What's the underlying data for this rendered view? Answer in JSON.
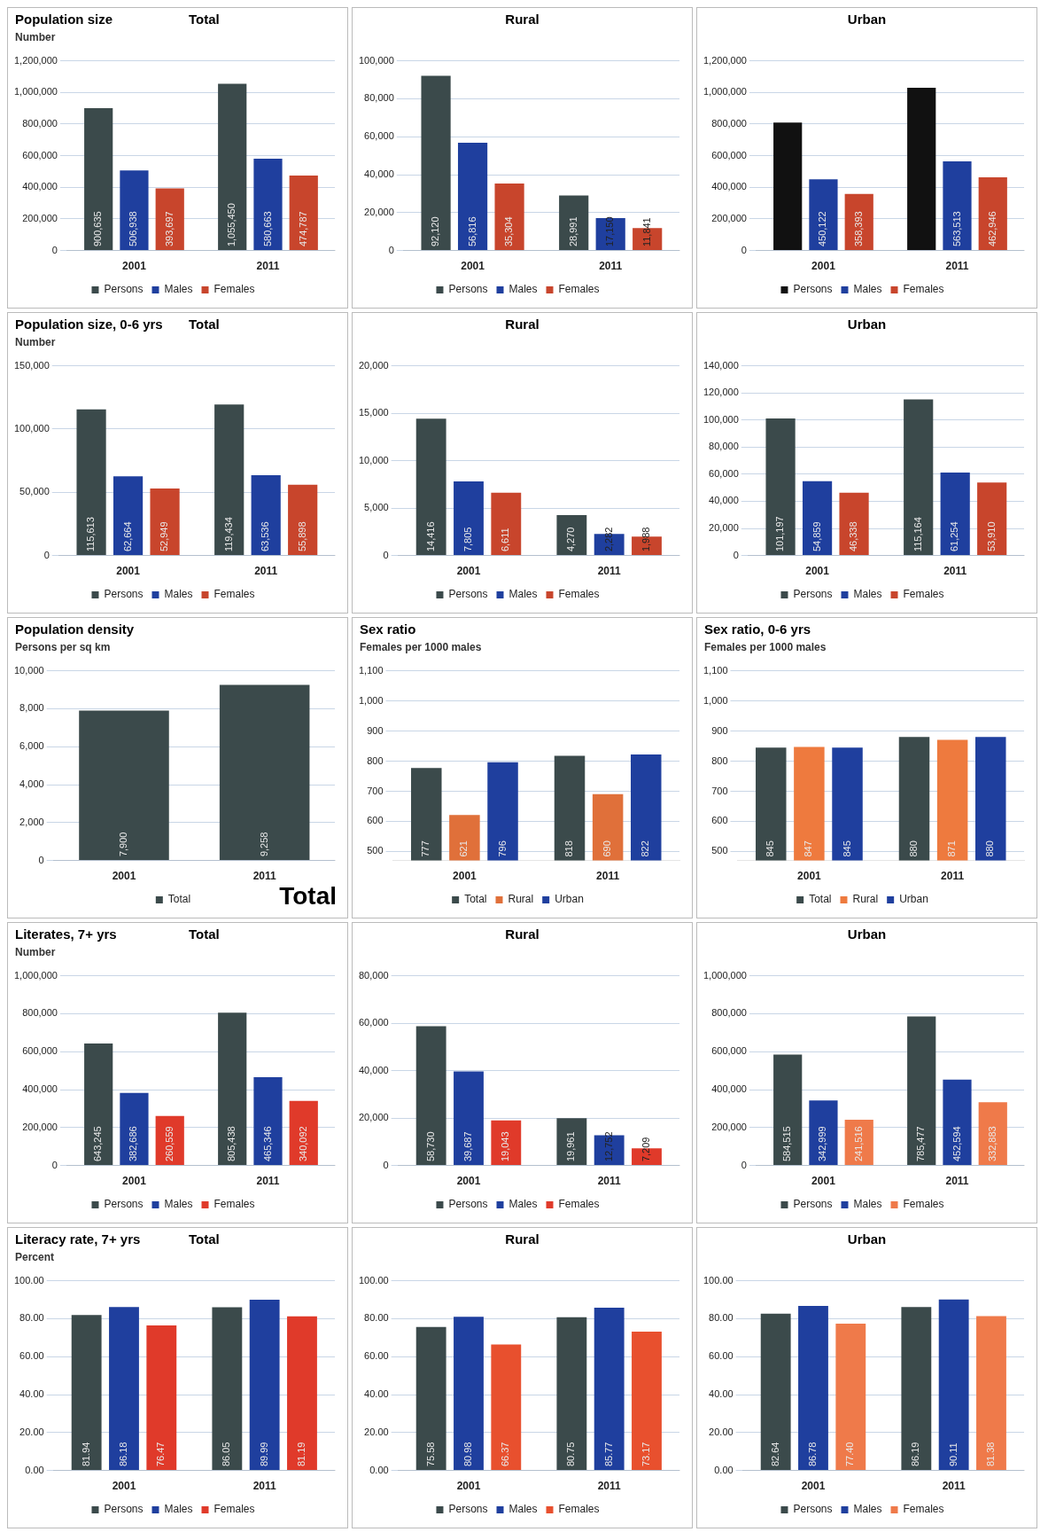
{
  "chart_data": [
    {
      "type": "bar",
      "title": "Population size",
      "subtitle": "Total",
      "ylabel": "Number",
      "categories": [
        "2001",
        "2011"
      ],
      "ylim": [
        0,
        1200000
      ],
      "yticks": [
        0,
        {
          "value": 200000,
          "label": "200,000"
        },
        {
          "value": 400000,
          "label": "400,000"
        },
        {
          "value": 600000,
          "label": "600,000"
        },
        {
          "value": 800000,
          "label": "800,000"
        },
        {
          "value": 1000000,
          "label": "1,000,000"
        },
        {
          "value": 1200000,
          "label": "1,200,000"
        }
      ],
      "grid": "y",
      "legend": "bottom",
      "series": [
        {
          "name": "Persons",
          "color": "#3b4a4b",
          "values": [
            900635,
            1055450
          ],
          "value_labels": [
            "900,635",
            "1,055,450"
          ]
        },
        {
          "name": "Males",
          "color": "#1f3f9e",
          "values": [
            506938,
            580663
          ],
          "value_labels": [
            "506,938",
            "580,663"
          ]
        },
        {
          "name": "Females",
          "color": "#c8452c",
          "values": [
            393697,
            474787
          ],
          "value_labels": [
            "393,697",
            "474,787"
          ]
        }
      ]
    },
    {
      "type": "bar",
      "subtitle": "Rural",
      "categories": [
        "2001",
        "2011"
      ],
      "ylim": [
        0,
        100000
      ],
      "yticks": [
        0,
        {
          "value": 20000,
          "label": "20,000"
        },
        {
          "value": 40000,
          "label": "40,000"
        },
        {
          "value": 60000,
          "label": "60,000"
        },
        {
          "value": 80000,
          "label": "80,000"
        },
        {
          "value": 100000,
          "label": "100,000"
        }
      ],
      "grid": "y",
      "legend": "bottom",
      "series": [
        {
          "name": "Persons",
          "color": "#3b4a4b",
          "values": [
            92120,
            28991
          ],
          "value_labels": [
            "92,120",
            "28,991"
          ]
        },
        {
          "name": "Males",
          "color": "#1f3f9e",
          "values": [
            56816,
            17150
          ],
          "value_labels": [
            "56,816",
            "17,150"
          ]
        },
        {
          "name": "Females",
          "color": "#c8452c",
          "values": [
            35304,
            11841
          ],
          "value_labels": [
            "35,304",
            "11,841"
          ]
        }
      ]
    },
    {
      "type": "bar",
      "subtitle": "Urban",
      "categories": [
        "2001",
        "2011"
      ],
      "ylim": [
        0,
        1200000
      ],
      "yticks": [
        0,
        {
          "value": 200000,
          "label": "200,000"
        },
        {
          "value": 400000,
          "label": "400,000"
        },
        {
          "value": 600000,
          "label": "600,000"
        },
        {
          "value": 800000,
          "label": "800,000"
        },
        {
          "value": 1000000,
          "label": "1,000,000"
        },
        {
          "value": 1200000,
          "label": "1,200,000"
        }
      ],
      "grid": "y",
      "legend": "bottom",
      "series": [
        {
          "name": "Persons",
          "color": "#111111",
          "values": [
            810000,
            1030000
          ],
          "value_labels": [
            null,
            null
          ]
        },
        {
          "name": "Males",
          "color": "#1f3f9e",
          "values": [
            450122,
            563513
          ],
          "value_labels": [
            "450,122",
            "563,513"
          ]
        },
        {
          "name": "Females",
          "color": "#c8452c",
          "values": [
            358393,
            462946
          ],
          "value_labels": [
            "358,393",
            "462,946"
          ]
        }
      ]
    },
    {
      "type": "bar",
      "title": "Population size, 0-6 yrs",
      "subtitle": "Total",
      "ylabel": "Number",
      "categories": [
        "2001",
        "2011"
      ],
      "ylim": [
        0,
        150000
      ],
      "yticks": [
        0,
        {
          "value": 50000,
          "label": "50,000"
        },
        {
          "value": 100000,
          "label": "100,000"
        },
        {
          "value": 150000,
          "label": "150,000"
        }
      ],
      "grid": "y",
      "legend": "bottom",
      "series": [
        {
          "name": "Persons",
          "color": "#3b4a4b",
          "values": [
            115613,
            119434
          ],
          "value_labels": [
            "115,613",
            "119,434"
          ]
        },
        {
          "name": "Males",
          "color": "#1f3f9e",
          "values": [
            62664,
            63536
          ],
          "value_labels": [
            "62,664",
            "63,536"
          ]
        },
        {
          "name": "Females",
          "color": "#c8452c",
          "values": [
            52949,
            55898
          ],
          "value_labels": [
            "52,949",
            "55,898"
          ]
        }
      ]
    },
    {
      "type": "bar",
      "subtitle": "Rural",
      "categories": [
        "2001",
        "2011"
      ],
      "ylim": [
        0,
        20000
      ],
      "yticks": [
        0,
        {
          "value": 5000,
          "label": "5,000"
        },
        {
          "value": 10000,
          "label": "10,000"
        },
        {
          "value": 15000,
          "label": "15,000"
        },
        {
          "value": 20000,
          "label": "20,000"
        }
      ],
      "grid": "y",
      "legend": "bottom",
      "series": [
        {
          "name": "Persons",
          "color": "#3b4a4b",
          "values": [
            14416,
            4270
          ],
          "value_labels": [
            "14,416",
            "4,270"
          ]
        },
        {
          "name": "Males",
          "color": "#1f3f9e",
          "values": [
            7805,
            2282
          ],
          "value_labels": [
            "7,805",
            "2,282"
          ]
        },
        {
          "name": "Females",
          "color": "#c8452c",
          "values": [
            6611,
            1988
          ],
          "value_labels": [
            "6,611",
            "1,988"
          ]
        }
      ]
    },
    {
      "type": "bar",
      "subtitle": "Urban",
      "categories": [
        "2001",
        "2011"
      ],
      "ylim": [
        0,
        140000
      ],
      "yticks": [
        0,
        {
          "value": 20000,
          "label": "20,000"
        },
        {
          "value": 40000,
          "label": "40,000"
        },
        {
          "value": 60000,
          "label": "60,000"
        },
        {
          "value": 80000,
          "label": "80,000"
        },
        {
          "value": 100000,
          "label": "100,000"
        },
        {
          "value": 120000,
          "label": "120,000"
        },
        {
          "value": 140000,
          "label": "140,000"
        }
      ],
      "grid": "y",
      "legend": "bottom",
      "series": [
        {
          "name": "Persons",
          "color": "#3b4a4b",
          "values": [
            101197,
            115164
          ],
          "value_labels": [
            "101,197",
            "115,164"
          ]
        },
        {
          "name": "Males",
          "color": "#1f3f9e",
          "values": [
            54859,
            61254
          ],
          "value_labels": [
            "54,859",
            "61,254"
          ]
        },
        {
          "name": "Females",
          "color": "#c8452c",
          "values": [
            46338,
            53910
          ],
          "value_labels": [
            "46,338",
            "53,910"
          ]
        }
      ]
    },
    {
      "type": "bar",
      "title": "Population density",
      "ylabel": "Persons per sq km",
      "annotations": [
        "Total"
      ],
      "categories": [
        "2001",
        "2011"
      ],
      "ylim": [
        0,
        10000
      ],
      "yticks": [
        0,
        {
          "value": 2000,
          "label": "2,000"
        },
        {
          "value": 4000,
          "label": "4,000"
        },
        {
          "value": 6000,
          "label": "6,000"
        },
        {
          "value": 8000,
          "label": "8,000"
        },
        {
          "value": 10000,
          "label": "10,000"
        }
      ],
      "grid": "y",
      "legend": "bottom",
      "series": [
        {
          "name": "Total",
          "color": "#3b4a4b",
          "values": [
            7900,
            9258
          ],
          "value_labels": [
            "7,900",
            "9,258"
          ]
        }
      ]
    },
    {
      "type": "bar",
      "title": "Sex ratio",
      "ylabel": "Females per 1000 males",
      "categories": [
        "2001",
        "2011"
      ],
      "ylim": [
        470,
        1100
      ],
      "yticks": [
        500,
        600,
        700,
        800,
        900,
        {
          "value": 1000,
          "label": "1,000"
        },
        {
          "value": 1100,
          "label": "1,100"
        }
      ],
      "grid": "y",
      "legend": "bottom",
      "series": [
        {
          "name": "Total",
          "color": "#3b4a4b",
          "values": [
            777,
            818
          ],
          "value_labels": [
            "777",
            "818"
          ]
        },
        {
          "name": "Rural",
          "color": "#e0703a",
          "values": [
            621,
            690
          ],
          "value_labels": [
            "621",
            "690"
          ]
        },
        {
          "name": "Urban",
          "color": "#1f3f9e",
          "values": [
            796,
            822
          ],
          "value_labels": [
            "796",
            "822"
          ]
        }
      ]
    },
    {
      "type": "bar",
      "title": "Sex ratio, 0-6 yrs",
      "ylabel": "Females per 1000 males",
      "categories": [
        "2001",
        "2011"
      ],
      "ylim": [
        470,
        1100
      ],
      "yticks": [
        500,
        600,
        700,
        800,
        900,
        {
          "value": 1000,
          "label": "1,000"
        },
        {
          "value": 1100,
          "label": "1,100"
        }
      ],
      "grid": "y",
      "legend": "bottom",
      "series": [
        {
          "name": "Total",
          "color": "#3b4a4b",
          "values": [
            845,
            880
          ],
          "value_labels": [
            "845",
            "880"
          ]
        },
        {
          "name": "Rural",
          "color": "#ee7a3e",
          "values": [
            847,
            871
          ],
          "value_labels": [
            "847",
            "871"
          ]
        },
        {
          "name": "Urban",
          "color": "#1f3f9e",
          "values": [
            845,
            880
          ],
          "value_labels": [
            "845",
            "880"
          ]
        }
      ]
    },
    {
      "type": "bar",
      "title": "Literates, 7+ yrs",
      "subtitle": "Total",
      "ylabel": "Number",
      "categories": [
        "2001",
        "2011"
      ],
      "ylim": [
        0,
        1000000
      ],
      "yticks": [
        0,
        {
          "value": 200000,
          "label": "200,000"
        },
        {
          "value": 400000,
          "label": "400,000"
        },
        {
          "value": 600000,
          "label": "600,000"
        },
        {
          "value": 800000,
          "label": "800,000"
        },
        {
          "value": 1000000,
          "label": "1,000,000"
        }
      ],
      "grid": "y",
      "legend": "bottom",
      "series": [
        {
          "name": "Persons",
          "color": "#3b4a4b",
          "values": [
            643245,
            805438
          ],
          "value_labels": [
            "643,245",
            "805,438"
          ]
        },
        {
          "name": "Males",
          "color": "#1f3f9e",
          "values": [
            382686,
            465346
          ],
          "value_labels": [
            "382,686",
            "465,346"
          ]
        },
        {
          "name": "Females",
          "color": "#e03a2a",
          "values": [
            260559,
            340092
          ],
          "value_labels": [
            "260,559",
            "340,092"
          ]
        }
      ]
    },
    {
      "type": "bar",
      "subtitle": "Rural",
      "categories": [
        "2001",
        "2011"
      ],
      "ylim": [
        0,
        80000
      ],
      "yticks": [
        0,
        {
          "value": 20000,
          "label": "20,000"
        },
        {
          "value": 40000,
          "label": "40,000"
        },
        {
          "value": 60000,
          "label": "60,000"
        },
        {
          "value": 80000,
          "label": "80,000"
        }
      ],
      "grid": "y",
      "legend": "bottom",
      "series": [
        {
          "name": "Persons",
          "color": "#3b4a4b",
          "values": [
            58730,
            19961
          ],
          "value_labels": [
            "58,730",
            "19,961"
          ]
        },
        {
          "name": "Males",
          "color": "#1f3f9e",
          "values": [
            39687,
            12752
          ],
          "value_labels": [
            "39,687",
            "12,752"
          ]
        },
        {
          "name": "Females",
          "color": "#e03a2a",
          "values": [
            19043,
            7209
          ],
          "value_labels": [
            "19,043",
            "7,209"
          ]
        }
      ]
    },
    {
      "type": "bar",
      "subtitle": "Urban",
      "categories": [
        "2001",
        "2011"
      ],
      "ylim": [
        0,
        1000000
      ],
      "yticks": [
        0,
        {
          "value": 200000,
          "label": "200,000"
        },
        {
          "value": 400000,
          "label": "400,000"
        },
        {
          "value": 600000,
          "label": "600,000"
        },
        {
          "value": 800000,
          "label": "800,000"
        },
        {
          "value": 1000000,
          "label": "1,000,000"
        }
      ],
      "grid": "y",
      "legend": "bottom",
      "series": [
        {
          "name": "Persons",
          "color": "#3b4a4b",
          "values": [
            584515,
            785477
          ],
          "value_labels": [
            "584,515",
            "785,477"
          ]
        },
        {
          "name": "Males",
          "color": "#1f3f9e",
          "values": [
            342999,
            452594
          ],
          "value_labels": [
            "342,999",
            "452,594"
          ]
        },
        {
          "name": "Females",
          "color": "#ef7a4a",
          "values": [
            241516,
            332883
          ],
          "value_labels": [
            "241,516",
            "332,883"
          ]
        }
      ]
    },
    {
      "type": "bar",
      "title": "Literacy rate, 7+ yrs",
      "subtitle": "Total",
      "ylabel": "Percent",
      "categories": [
        "2001",
        "2011"
      ],
      "ylim": [
        0,
        100
      ],
      "yticks": [
        {
          "value": 0,
          "label": "0.00"
        },
        {
          "value": 20,
          "label": "20.00"
        },
        {
          "value": 40,
          "label": "40.00"
        },
        {
          "value": 60,
          "label": "60.00"
        },
        {
          "value": 80,
          "label": "80.00"
        },
        {
          "value": 100,
          "label": "100.00"
        }
      ],
      "grid": "y",
      "legend": "bottom",
      "series": [
        {
          "name": "Persons",
          "color": "#3b4a4b",
          "values": [
            81.94,
            86.05
          ],
          "value_labels": [
            "81.94",
            "86.05"
          ]
        },
        {
          "name": "Males",
          "color": "#1f3f9e",
          "values": [
            86.18,
            89.99
          ],
          "value_labels": [
            "86.18",
            "89.99"
          ]
        },
        {
          "name": "Females",
          "color": "#e03a2a",
          "values": [
            76.47,
            81.19
          ],
          "value_labels": [
            "76.47",
            "81.19"
          ]
        }
      ]
    },
    {
      "type": "bar",
      "subtitle": "Rural",
      "categories": [
        "2001",
        "2011"
      ],
      "ylim": [
        0,
        100
      ],
      "yticks": [
        {
          "value": 0,
          "label": "0.00"
        },
        {
          "value": 20,
          "label": "20.00"
        },
        {
          "value": 40,
          "label": "40.00"
        },
        {
          "value": 60,
          "label": "60.00"
        },
        {
          "value": 80,
          "label": "80.00"
        },
        {
          "value": 100,
          "label": "100.00"
        }
      ],
      "grid": "y",
      "legend": "bottom",
      "series": [
        {
          "name": "Persons",
          "color": "#3b4a4b",
          "values": [
            75.58,
            80.75
          ],
          "value_labels": [
            "75.58",
            "80.75"
          ]
        },
        {
          "name": "Males",
          "color": "#1f3f9e",
          "values": [
            80.98,
            85.77
          ],
          "value_labels": [
            "80.98",
            "85.77"
          ]
        },
        {
          "name": "Females",
          "color": "#e8502e",
          "values": [
            66.37,
            73.17
          ],
          "value_labels": [
            "66.37",
            "73.17"
          ]
        }
      ]
    },
    {
      "type": "bar",
      "subtitle": "Urban",
      "categories": [
        "2001",
        "2011"
      ],
      "ylim": [
        0,
        100
      ],
      "yticks": [
        {
          "value": 0,
          "label": "0.00"
        },
        {
          "value": 20,
          "label": "20.00"
        },
        {
          "value": 40,
          "label": "40.00"
        },
        {
          "value": 60,
          "label": "60.00"
        },
        {
          "value": 80,
          "label": "80.00"
        },
        {
          "value": 100,
          "label": "100.00"
        }
      ],
      "grid": "y",
      "legend": "bottom",
      "series": [
        {
          "name": "Persons",
          "color": "#3b4a4b",
          "values": [
            82.64,
            86.19
          ],
          "value_labels": [
            "82.64",
            "86.19"
          ]
        },
        {
          "name": "Males",
          "color": "#1f3f9e",
          "values": [
            86.78,
            90.11
          ],
          "value_labels": [
            "86.78",
            "90.11"
          ]
        },
        {
          "name": "Females",
          "color": "#ef7a4a",
          "values": [
            77.4,
            81.38
          ],
          "value_labels": [
            "77.40",
            "81.38"
          ]
        }
      ]
    }
  ]
}
